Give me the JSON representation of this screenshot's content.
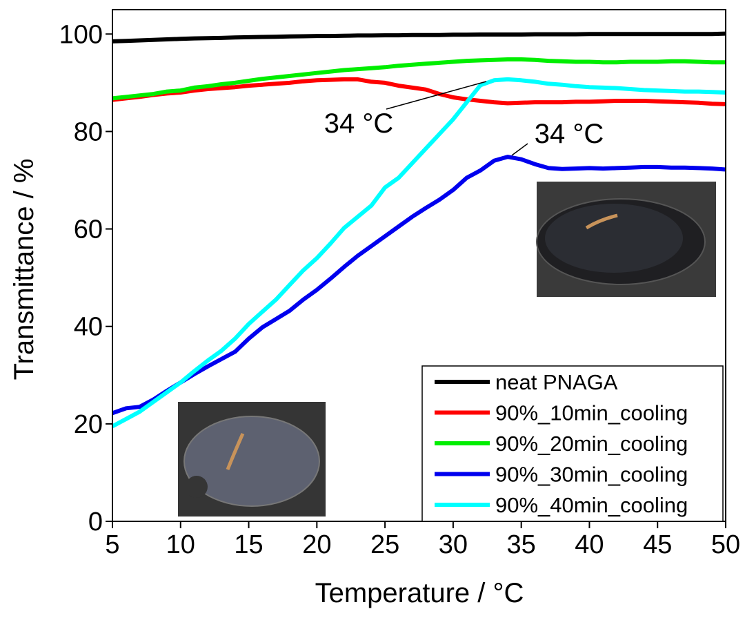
{
  "chart_data": {
    "type": "line",
    "x_label": "Temperature / °C",
    "y_label": "Transmittance / %",
    "xlim": [
      5,
      50
    ],
    "ylim": [
      0,
      105
    ],
    "xticks": [
      5,
      10,
      15,
      20,
      25,
      30,
      35,
      40,
      45,
      50
    ],
    "yticks": [
      0,
      20,
      40,
      60,
      80,
      100
    ],
    "legend": "lower right",
    "annotations": [
      "34 °C",
      "34 °C"
    ],
    "x": [
      5,
      6,
      7,
      8,
      9,
      10,
      11,
      12,
      13,
      14,
      15,
      16,
      17,
      18,
      19,
      20,
      21,
      22,
      23,
      24,
      25,
      26,
      27,
      28,
      29,
      30,
      31,
      32,
      33,
      34,
      35,
      36,
      37,
      38,
      39,
      40,
      41,
      42,
      43,
      44,
      45,
      46,
      47,
      48,
      49,
      50
    ],
    "series": [
      {
        "name": "neat PNAGA",
        "color": "#000000",
        "values": [
          98.5,
          98.6,
          98.7,
          98.8,
          98.9,
          99.0,
          99.1,
          99.15,
          99.2,
          99.3,
          99.35,
          99.4,
          99.45,
          99.5,
          99.55,
          99.6,
          99.6,
          99.65,
          99.7,
          99.7,
          99.75,
          99.75,
          99.8,
          99.8,
          99.8,
          99.85,
          99.85,
          99.9,
          99.9,
          99.9,
          99.9,
          99.95,
          99.95,
          99.95,
          99.95,
          100,
          100,
          100,
          100,
          100,
          100,
          100,
          100,
          100,
          100,
          100.1
        ]
      },
      {
        "name": "90%_10min_cooling",
        "color": "#ff0000",
        "values": [
          86.5,
          86.8,
          87.1,
          87.5,
          87.8,
          88.0,
          88.4,
          88.7,
          88.9,
          89.1,
          89.4,
          89.6,
          89.8,
          90.0,
          90.3,
          90.5,
          90.6,
          90.7,
          90.7,
          90.2,
          90.0,
          89.4,
          89.0,
          88.6,
          87.7,
          87.0,
          86.6,
          86.3,
          86.0,
          85.8,
          85.9,
          86.0,
          86.0,
          86.0,
          86.1,
          86.1,
          86.2,
          86.3,
          86.3,
          86.3,
          86.2,
          86.1,
          86.0,
          85.9,
          85.7,
          85.6
        ]
      },
      {
        "name": "90%_20min_cooling",
        "color": "#00ee00",
        "values": [
          86.8,
          87.1,
          87.4,
          87.7,
          88.2,
          88.4,
          89.0,
          89.3,
          89.7,
          90.0,
          90.4,
          90.8,
          91.1,
          91.4,
          91.7,
          92.0,
          92.3,
          92.6,
          92.8,
          93.0,
          93.2,
          93.5,
          93.7,
          93.9,
          94.1,
          94.3,
          94.5,
          94.6,
          94.7,
          94.8,
          94.8,
          94.7,
          94.5,
          94.4,
          94.3,
          94.3,
          94.2,
          94.2,
          94.3,
          94.3,
          94.3,
          94.4,
          94.4,
          94.3,
          94.2,
          94.2
        ]
      },
      {
        "name": "90%_30min_cooling",
        "color": "#0000ee",
        "values": [
          22.2,
          23.2,
          23.5,
          25.0,
          26.8,
          28.5,
          30.2,
          31.8,
          33.3,
          34.8,
          37.5,
          39.8,
          41.5,
          43.2,
          45.5,
          47.5,
          49.8,
          52.2,
          54.5,
          56.5,
          58.5,
          60.5,
          62.5,
          64.3,
          66.0,
          68.0,
          70.5,
          72.0,
          74.0,
          74.8,
          74.3,
          73.3,
          72.5,
          72.3,
          72.4,
          72.5,
          72.4,
          72.5,
          72.6,
          72.7,
          72.7,
          72.6,
          72.6,
          72.5,
          72.4,
          72.2
        ]
      },
      {
        "name": "90%_40min_cooling",
        "color": "#00ffff",
        "values": [
          19.5,
          21.0,
          22.5,
          24.5,
          26.5,
          28.5,
          30.8,
          33.0,
          35.0,
          37.5,
          40.5,
          43.0,
          45.5,
          48.5,
          51.5,
          54.0,
          57.0,
          60.2,
          62.5,
          64.8,
          68.5,
          70.5,
          73.5,
          76.5,
          79.5,
          82.5,
          86.0,
          89.5,
          90.5,
          90.7,
          90.5,
          90.2,
          89.8,
          89.6,
          89.3,
          89.1,
          89.0,
          88.9,
          88.7,
          88.5,
          88.4,
          88.3,
          88.2,
          88.2,
          88.1,
          88.0
        ]
      }
    ]
  }
}
